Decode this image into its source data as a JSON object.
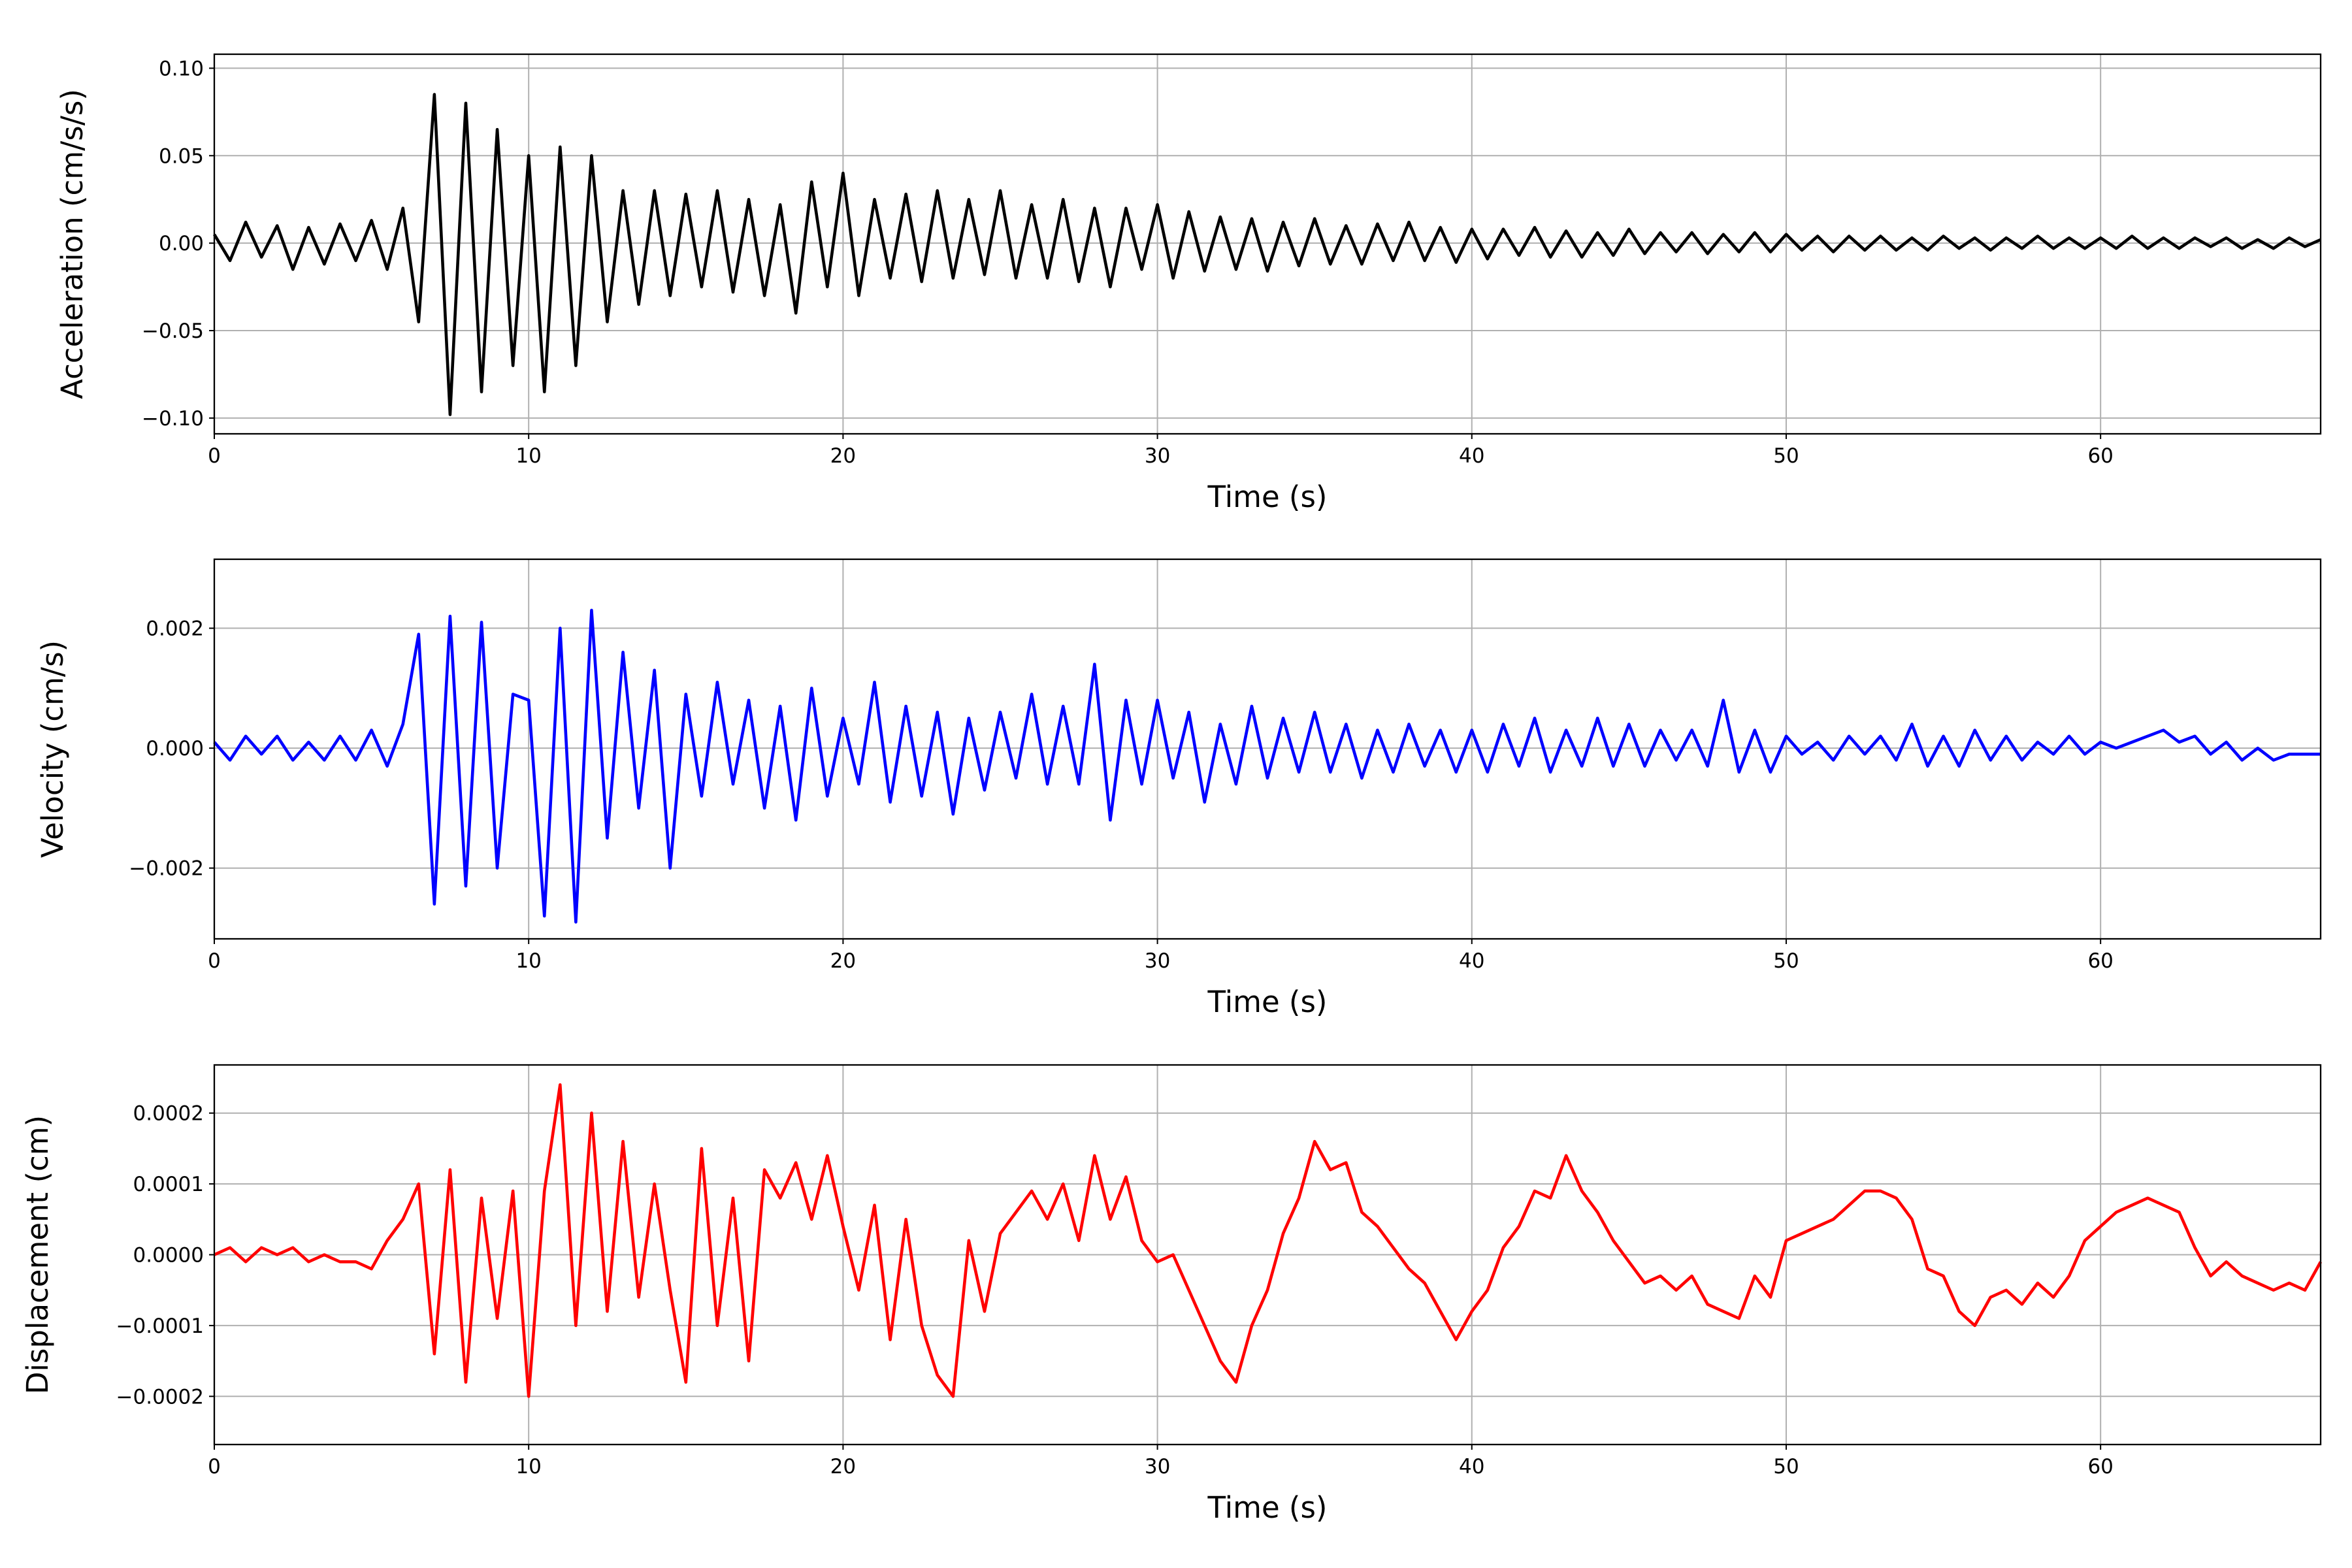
{
  "chart_data": [
    {
      "type": "line",
      "xlabel": "Time (s)",
      "ylabel": "Acceleration (cm/s/s)",
      "color": "#000000",
      "grid": true,
      "xlim": [
        0,
        67
      ],
      "ylim": [
        -0.109,
        0.108
      ],
      "xticks": [
        0,
        10,
        20,
        30,
        40,
        50,
        60
      ],
      "yticks": [
        {
          "value": -0.1,
          "label": "−0.10"
        },
        {
          "value": -0.05,
          "label": "−0.05"
        },
        {
          "value": 0,
          "label": "0.00"
        },
        {
          "value": 0.05,
          "label": "0.05"
        },
        {
          "value": 0.1,
          "label": "0.10"
        }
      ],
      "x": [
        0,
        0.5,
        1,
        1.5,
        2,
        2.5,
        3,
        3.5,
        4,
        4.5,
        5,
        5.5,
        6,
        6.5,
        7,
        7.5,
        8,
        8.5,
        9,
        9.5,
        10,
        10.5,
        11,
        11.5,
        12,
        12.5,
        13,
        13.5,
        14,
        14.5,
        15,
        15.5,
        16,
        16.5,
        17,
        17.5,
        18,
        18.5,
        19,
        19.5,
        20,
        20.5,
        21,
        21.5,
        22,
        22.5,
        23,
        23.5,
        24,
        24.5,
        25,
        25.5,
        26,
        26.5,
        27,
        27.5,
        28,
        28.5,
        29,
        29.5,
        30,
        30.5,
        31,
        31.5,
        32,
        32.5,
        33,
        33.5,
        34,
        34.5,
        35,
        35.5,
        36,
        36.5,
        37,
        37.5,
        38,
        38.5,
        39,
        39.5,
        40,
        40.5,
        41,
        41.5,
        42,
        42.5,
        43,
        43.5,
        44,
        44.5,
        45,
        45.5,
        46,
        46.5,
        47,
        47.5,
        48,
        48.5,
        49,
        49.5,
        50,
        50.5,
        51,
        51.5,
        52,
        52.5,
        53,
        53.5,
        54,
        54.5,
        55,
        55.5,
        56,
        56.5,
        57,
        57.5,
        58,
        58.5,
        59,
        59.5,
        60,
        60.5,
        61,
        61.5,
        62,
        62.5,
        63,
        63.5,
        64,
        64.5,
        65,
        65.5,
        66,
        66.5,
        67
      ],
      "values": [
        0.005,
        -0.01,
        0.012,
        -0.008,
        0.01,
        -0.015,
        0.009,
        -0.012,
        0.011,
        -0.01,
        0.013,
        -0.015,
        0.02,
        -0.045,
        0.085,
        -0.098,
        0.08,
        -0.085,
        0.065,
        -0.07,
        0.05,
        -0.085,
        0.055,
        -0.07,
        0.05,
        -0.045,
        0.03,
        -0.035,
        0.03,
        -0.03,
        0.028,
        -0.025,
        0.03,
        -0.028,
        0.025,
        -0.03,
        0.022,
        -0.04,
        0.035,
        -0.025,
        0.04,
        -0.03,
        0.025,
        -0.02,
        0.028,
        -0.022,
        0.03,
        -0.02,
        0.025,
        -0.018,
        0.03,
        -0.02,
        0.022,
        -0.02,
        0.025,
        -0.022,
        0.02,
        -0.025,
        0.02,
        -0.015,
        0.022,
        -0.02,
        0.018,
        -0.016,
        0.015,
        -0.015,
        0.014,
        -0.016,
        0.012,
        -0.013,
        0.014,
        -0.012,
        0.01,
        -0.012,
        0.011,
        -0.01,
        0.012,
        -0.01,
        0.009,
        -0.011,
        0.008,
        -0.009,
        0.008,
        -0.007,
        0.009,
        -0.008,
        0.007,
        -0.008,
        0.006,
        -0.007,
        0.008,
        -0.006,
        0.006,
        -0.005,
        0.006,
        -0.006,
        0.005,
        -0.005,
        0.006,
        -0.005,
        0.005,
        -0.004,
        0.004,
        -0.005,
        0.004,
        -0.004,
        0.004,
        -0.004,
        0.003,
        -0.004,
        0.004,
        -0.003,
        0.003,
        -0.004,
        0.003,
        -0.003,
        0.004,
        -0.003,
        0.003,
        -0.003,
        0.003,
        -0.003,
        0.004,
        -0.003,
        0.003,
        -0.003,
        0.003,
        -0.002,
        0.003,
        -0.003,
        0.002,
        -0.003,
        0.003,
        -0.002,
        0.002
      ]
    },
    {
      "type": "line",
      "xlabel": "Time (s)",
      "ylabel": "Velocity (cm/s)",
      "color": "#0000ff",
      "grid": true,
      "xlim": [
        0,
        67
      ],
      "ylim": [
        -0.00318,
        0.00315
      ],
      "xticks": [
        0,
        10,
        20,
        30,
        40,
        50,
        60
      ],
      "yticks": [
        {
          "value": -0.002,
          "label": "−0.002"
        },
        {
          "value": 0,
          "label": "0.000"
        },
        0.002
      ],
      "x": [
        0,
        0.5,
        1,
        1.5,
        2,
        2.5,
        3,
        3.5,
        4,
        4.5,
        5,
        5.5,
        6,
        6.5,
        7,
        7.5,
        8,
        8.5,
        9,
        9.5,
        10,
        10.5,
        11,
        11.5,
        12,
        12.5,
        13,
        13.5,
        14,
        14.5,
        15,
        15.5,
        16,
        16.5,
        17,
        17.5,
        18,
        18.5,
        19,
        19.5,
        20,
        20.5,
        21,
        21.5,
        22,
        22.5,
        23,
        23.5,
        24,
        24.5,
        25,
        25.5,
        26,
        26.5,
        27,
        27.5,
        28,
        28.5,
        29,
        29.5,
        30,
        30.5,
        31,
        31.5,
        32,
        32.5,
        33,
        33.5,
        34,
        34.5,
        35,
        35.5,
        36,
        36.5,
        37,
        37.5,
        38,
        38.5,
        39,
        39.5,
        40,
        40.5,
        41,
        41.5,
        42,
        42.5,
        43,
        43.5,
        44,
        44.5,
        45,
        45.5,
        46,
        46.5,
        47,
        47.5,
        48,
        48.5,
        49,
        49.5,
        50,
        50.5,
        51,
        51.5,
        52,
        52.5,
        53,
        53.5,
        54,
        54.5,
        55,
        55.5,
        56,
        56.5,
        57,
        57.5,
        58,
        58.5,
        59,
        59.5,
        60,
        60.5,
        61,
        61.5,
        62,
        62.5,
        63,
        63.5,
        64,
        64.5,
        65,
        65.5,
        66,
        66.5,
        67
      ],
      "values": [
        0.0001,
        -0.0002,
        0.0002,
        -0.0001,
        0.0002,
        -0.0002,
        0.0001,
        -0.0002,
        0.0002,
        -0.0002,
        0.0003,
        -0.0003,
        0.0004,
        0.0019,
        -0.0026,
        0.0022,
        -0.0023,
        0.0021,
        -0.002,
        0.0009,
        0.0008,
        -0.0028,
        0.002,
        -0.0029,
        0.0023,
        -0.0015,
        0.0016,
        -0.001,
        0.0013,
        -0.002,
        0.0009,
        -0.0008,
        0.0011,
        -0.0006,
        0.0008,
        -0.001,
        0.0007,
        -0.0012,
        0.001,
        -0.0008,
        0.0005,
        -0.0006,
        0.0011,
        -0.0009,
        0.0007,
        -0.0008,
        0.0006,
        -0.0011,
        0.0005,
        -0.0007,
        0.0006,
        -0.0005,
        0.0009,
        -0.0006,
        0.0007,
        -0.0006,
        0.0014,
        -0.0012,
        0.0008,
        -0.0006,
        0.0008,
        -0.0005,
        0.0006,
        -0.0009,
        0.0004,
        -0.0006,
        0.0007,
        -0.0005,
        0.0005,
        -0.0004,
        0.0006,
        -0.0004,
        0.0004,
        -0.0005,
        0.0003,
        -0.0004,
        0.0004,
        -0.0003,
        0.0003,
        -0.0004,
        0.0003,
        -0.0004,
        0.0004,
        -0.0003,
        0.0005,
        -0.0004,
        0.0003,
        -0.0003,
        0.0005,
        -0.0003,
        0.0004,
        -0.0003,
        0.0003,
        -0.0002,
        0.0003,
        -0.0003,
        0.0008,
        -0.0004,
        0.0003,
        -0.0004,
        0.0002,
        -0.0001,
        0.0001,
        -0.0002,
        0.0002,
        -0.0001,
        0.0002,
        -0.0002,
        0.0004,
        -0.0003,
        0.0002,
        -0.0003,
        0.0003,
        -0.0002,
        0.0002,
        -0.0002,
        0.0001,
        -0.0001,
        0.0002,
        -0.0001,
        0.0001,
        0,
        0.0001,
        0.0002,
        0.0003,
        0.0001,
        0.0002,
        -0.0001,
        0.0001,
        -0.0002,
        0,
        -0.0002,
        -0.0001,
        -0.0001,
        -0.0001
      ]
    },
    {
      "type": "line",
      "xlabel": "Time (s)",
      "ylabel": "Displacement (cm)",
      "color": "#ff0000",
      "grid": true,
      "xlim": [
        0,
        67
      ],
      "ylim": [
        -0.000268,
        0.000268
      ],
      "xticks": [
        0,
        10,
        20,
        30,
        40,
        50,
        60
      ],
      "yticks": [
        {
          "value": -0.0002,
          "label": "−0.0002"
        },
        {
          "value": -0.0001,
          "label": "−0.0001"
        },
        {
          "value": 0,
          "label": "0.0000"
        },
        {
          "value": 0.0001,
          "label": "0.0001"
        },
        {
          "value": 0.0002,
          "label": "0.0002"
        }
      ],
      "x": [
        0,
        0.5,
        1,
        1.5,
        2,
        2.5,
        3,
        3.5,
        4,
        4.5,
        5,
        5.5,
        6,
        6.5,
        7,
        7.5,
        8,
        8.5,
        9,
        9.5,
        10,
        10.5,
        11,
        11.5,
        12,
        12.5,
        13,
        13.5,
        14,
        14.5,
        15,
        15.5,
        16,
        16.5,
        17,
        17.5,
        18,
        18.5,
        19,
        19.5,
        20,
        20.5,
        21,
        21.5,
        22,
        22.5,
        23,
        23.5,
        24,
        24.5,
        25,
        25.5,
        26,
        26.5,
        27,
        27.5,
        28,
        28.5,
        29,
        29.5,
        30,
        30.5,
        31,
        31.5,
        32,
        32.5,
        33,
        33.5,
        34,
        34.5,
        35,
        35.5,
        36,
        36.5,
        37,
        37.5,
        38,
        38.5,
        39,
        39.5,
        40,
        40.5,
        41,
        41.5,
        42,
        42.5,
        43,
        43.5,
        44,
        44.5,
        45,
        45.5,
        46,
        46.5,
        47,
        47.5,
        48,
        48.5,
        49,
        49.5,
        50,
        50.5,
        51,
        51.5,
        52,
        52.5,
        53,
        53.5,
        54,
        54.5,
        55,
        55.5,
        56,
        56.5,
        57,
        57.5,
        58,
        58.5,
        59,
        59.5,
        60,
        60.5,
        61,
        61.5,
        62,
        62.5,
        63,
        63.5,
        64,
        64.5,
        65,
        65.5,
        66,
        66.5,
        67
      ],
      "values": [
        0,
        1e-05,
        -1e-05,
        1e-05,
        0,
        1e-05,
        -1e-05,
        0,
        -1e-05,
        -1e-05,
        -2e-05,
        2e-05,
        5e-05,
        0.0001,
        -0.00014,
        0.00012,
        -0.00018,
        8e-05,
        -9e-05,
        9e-05,
        -0.0002,
        9e-05,
        0.00024,
        -0.0001,
        0.0002,
        -8e-05,
        0.00016,
        -6e-05,
        0.0001,
        -5e-05,
        -0.00018,
        0.00015,
        -0.0001,
        8e-05,
        -0.00015,
        0.00012,
        8e-05,
        0.00013,
        5e-05,
        0.00014,
        4e-05,
        -5e-05,
        7e-05,
        -0.00012,
        5e-05,
        -0.0001,
        -0.00017,
        -0.0002,
        2e-05,
        -8e-05,
        3e-05,
        6e-05,
        9e-05,
        5e-05,
        0.0001,
        2e-05,
        0.00014,
        5e-05,
        0.00011,
        2e-05,
        -1e-05,
        0,
        -5e-05,
        -0.0001,
        -0.00015,
        -0.00018,
        -0.0001,
        -5e-05,
        3e-05,
        8e-05,
        0.00016,
        0.00012,
        0.00013,
        6e-05,
        4e-05,
        1e-05,
        -2e-05,
        -4e-05,
        -8e-05,
        -0.00012,
        -8e-05,
        -5e-05,
        1e-05,
        4e-05,
        9e-05,
        8e-05,
        0.00014,
        9e-05,
        6e-05,
        2e-05,
        -1e-05,
        -4e-05,
        -3e-05,
        -5e-05,
        -3e-05,
        -7e-05,
        -8e-05,
        -9e-05,
        -3e-05,
        -6e-05,
        2e-05,
        3e-05,
        4e-05,
        5e-05,
        7e-05,
        9e-05,
        9e-05,
        8e-05,
        5e-05,
        -2e-05,
        -3e-05,
        -8e-05,
        -0.0001,
        -6e-05,
        -5e-05,
        -7e-05,
        -4e-05,
        -6e-05,
        -3e-05,
        2e-05,
        4e-05,
        6e-05,
        7e-05,
        8e-05,
        7e-05,
        6e-05,
        1e-05,
        -3e-05,
        -1e-05,
        -3e-05,
        -4e-05,
        -5e-05,
        -4e-05,
        -5e-05,
        -1e-05
      ]
    }
  ]
}
